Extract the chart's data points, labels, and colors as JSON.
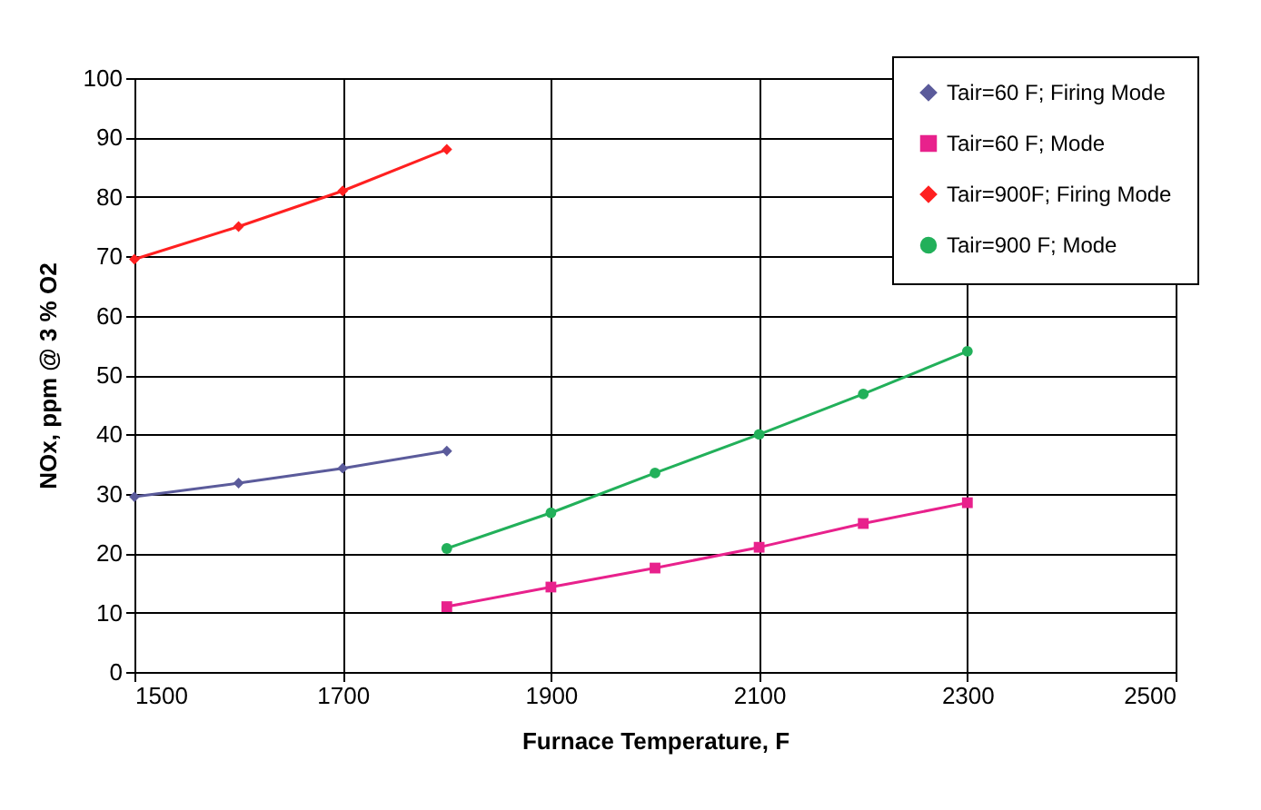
{
  "chart_data": {
    "type": "line",
    "xlabel": "Furnace Temperature, F",
    "ylabel": "NOx, ppm @ 3 % O2",
    "xlim": [
      1500,
      2500
    ],
    "xticks": [
      1500,
      1700,
      1900,
      2100,
      2300,
      2500
    ],
    "ylim": [
      0,
      100
    ],
    "yticks": [
      0,
      10,
      20,
      30,
      40,
      50,
      60,
      70,
      80,
      90,
      100
    ],
    "grid": true,
    "legend": "top right",
    "line_style": "solid",
    "series": [
      {
        "name": "Tair=60 F; Firing Mode",
        "color": "#5b5b9b",
        "marker": "diamond",
        "x": [
          1500,
          1600,
          1700,
          1800
        ],
        "values": [
          29.5,
          31.8,
          34.3,
          37.2
        ]
      },
      {
        "name": "Tair=60 F; Mode",
        "color": "#e8218c",
        "marker": "square",
        "x": [
          1800,
          1900,
          2000,
          2100,
          2200,
          2300
        ],
        "values": [
          11,
          14.3,
          17.5,
          21,
          25,
          28.5
        ]
      },
      {
        "name": "Tair=900F; Firing Mode",
        "color": "#ff2020",
        "marker": "diamond",
        "x": [
          1500,
          1600,
          1700,
          1800
        ],
        "values": [
          69.5,
          75,
          81,
          88
        ]
      },
      {
        "name": "Tair=900 F; Mode",
        "color": "#22b05a",
        "marker": "circle",
        "x": [
          1800,
          1900,
          2000,
          2100,
          2200,
          2300
        ],
        "values": [
          20.8,
          26.8,
          33.5,
          40,
          46.8,
          54
        ]
      }
    ]
  }
}
